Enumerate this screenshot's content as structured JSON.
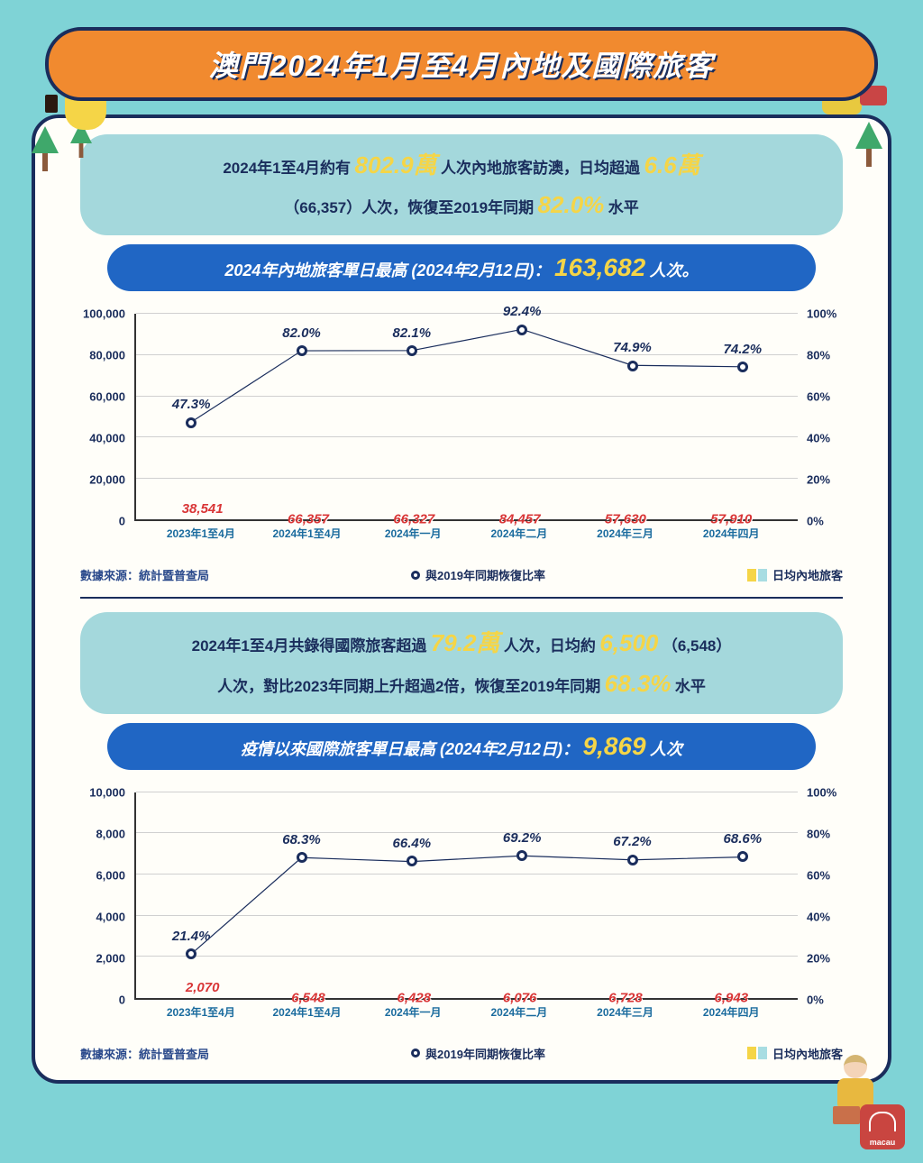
{
  "header": {
    "title": "澳門2024年1月至4月內地及國際旅客"
  },
  "colors": {
    "page_bg": "#7fd3d6",
    "card_bg": "#fffef9",
    "banner_bg": "#f18a2f",
    "border": "#1a2d5c",
    "summary_bg": "#a4d8dc",
    "peak_bg": "#2066c4",
    "highlight": "#f5d547",
    "bar_value": "#d93636",
    "bar_normal": "#a8dde2",
    "bar_accent_start": "#f5d547",
    "line": "#1a2d5c",
    "grid": "#d0d0d0"
  },
  "chart1": {
    "summary": {
      "p1a": "2024年1至4月約有",
      "h1": "802.9萬",
      "p1b": "人次內地旅客訪澳，日均超過",
      "h2": "6.6萬",
      "p2a": "（66,357）人次，恢復至2019年同期",
      "h3": "82.0%",
      "p2b": "水平"
    },
    "peak": {
      "label": "2024年內地旅客單日最高 (2024年2月12日)：",
      "value": "163,682",
      "suffix": "人次。"
    },
    "y_left": {
      "min": 0,
      "max": 100000,
      "step": 20000,
      "ticks": [
        "0",
        "20,000",
        "40,000",
        "60,000",
        "80,000",
        "100,000"
      ]
    },
    "y_right": {
      "min": 0,
      "max": 100,
      "step": 20,
      "ticks": [
        "0%",
        "20%",
        "40%",
        "60%",
        "80%",
        "100%"
      ]
    },
    "categories": [
      "2023年1至4月",
      "2024年1至4月",
      "2024年一月",
      "2024年二月",
      "2024年三月",
      "2024年四月"
    ],
    "bars": [
      {
        "value": 38541,
        "label": "38,541",
        "accent": false,
        "short": true
      },
      {
        "value": 66357,
        "label": "66,357",
        "accent": true,
        "short": false
      },
      {
        "value": 66327,
        "label": "66,327",
        "accent": false,
        "short": false
      },
      {
        "value": 84457,
        "label": "84,457",
        "accent": false,
        "short": false
      },
      {
        "value": 57630,
        "label": "57,630",
        "accent": false,
        "short": false
      },
      {
        "value": 57910,
        "label": "57,910",
        "accent": false,
        "short": false
      }
    ],
    "line": [
      {
        "pct": 47.3,
        "label": "47.3%"
      },
      {
        "pct": 82.0,
        "label": "82.0%"
      },
      {
        "pct": 82.1,
        "label": "82.1%"
      },
      {
        "pct": 92.4,
        "label": "92.4%"
      },
      {
        "pct": 74.9,
        "label": "74.9%"
      },
      {
        "pct": 74.2,
        "label": "74.2%"
      }
    ],
    "source": "數據來源：統計暨普查局",
    "legend_line": "與2019年同期恢復比率",
    "legend_bar": "日均內地旅客"
  },
  "chart2": {
    "summary": {
      "p1a": "2024年1至4月共錄得國際旅客超過",
      "h1": "79.2萬",
      "p1b": "人次，日均約",
      "h2": "6,500",
      "p1c": "（6,548）",
      "p2a": "人次，對比2023年同期上升超過2倍，恢復至2019年同期",
      "h3": "68.3%",
      "p2b": "水平"
    },
    "peak": {
      "label": "疫情以來國際旅客單日最高 (2024年2月12日)：",
      "value": "9,869",
      "suffix": "人次"
    },
    "y_left": {
      "min": 0,
      "max": 10000,
      "step": 2000,
      "ticks": [
        "0",
        "2,000",
        "4,000",
        "6,000",
        "8,000",
        "10,000"
      ]
    },
    "y_right": {
      "min": 0,
      "max": 100,
      "step": 20,
      "ticks": [
        "0%",
        "20%",
        "40%",
        "60%",
        "80%",
        "100%"
      ]
    },
    "categories": [
      "2023年1至4月",
      "2024年1至4月",
      "2024年一月",
      "2024年二月",
      "2024年三月",
      "2024年四月"
    ],
    "bars": [
      {
        "value": 2070,
        "label": "2,070",
        "accent": false,
        "short": true
      },
      {
        "value": 6548,
        "label": "6,548",
        "accent": true,
        "short": false
      },
      {
        "value": 6428,
        "label": "6,428",
        "accent": false,
        "short": false
      },
      {
        "value": 6076,
        "label": "6,076",
        "accent": false,
        "short": false
      },
      {
        "value": 6728,
        "label": "6,728",
        "accent": false,
        "short": false
      },
      {
        "value": 6943,
        "label": "6,943",
        "accent": false,
        "short": false
      }
    ],
    "line": [
      {
        "pct": 21.4,
        "label": "21.4%"
      },
      {
        "pct": 68.3,
        "label": "68.3%"
      },
      {
        "pct": 66.4,
        "label": "66.4%"
      },
      {
        "pct": 69.2,
        "label": "69.2%"
      },
      {
        "pct": 67.2,
        "label": "67.2%"
      },
      {
        "pct": 68.6,
        "label": "68.6%"
      }
    ],
    "source": "數據來源：統計暨普查局",
    "legend_line": "與2019年同期恢復比率",
    "legend_bar": "日均內地旅客"
  },
  "logo_text": "macau"
}
